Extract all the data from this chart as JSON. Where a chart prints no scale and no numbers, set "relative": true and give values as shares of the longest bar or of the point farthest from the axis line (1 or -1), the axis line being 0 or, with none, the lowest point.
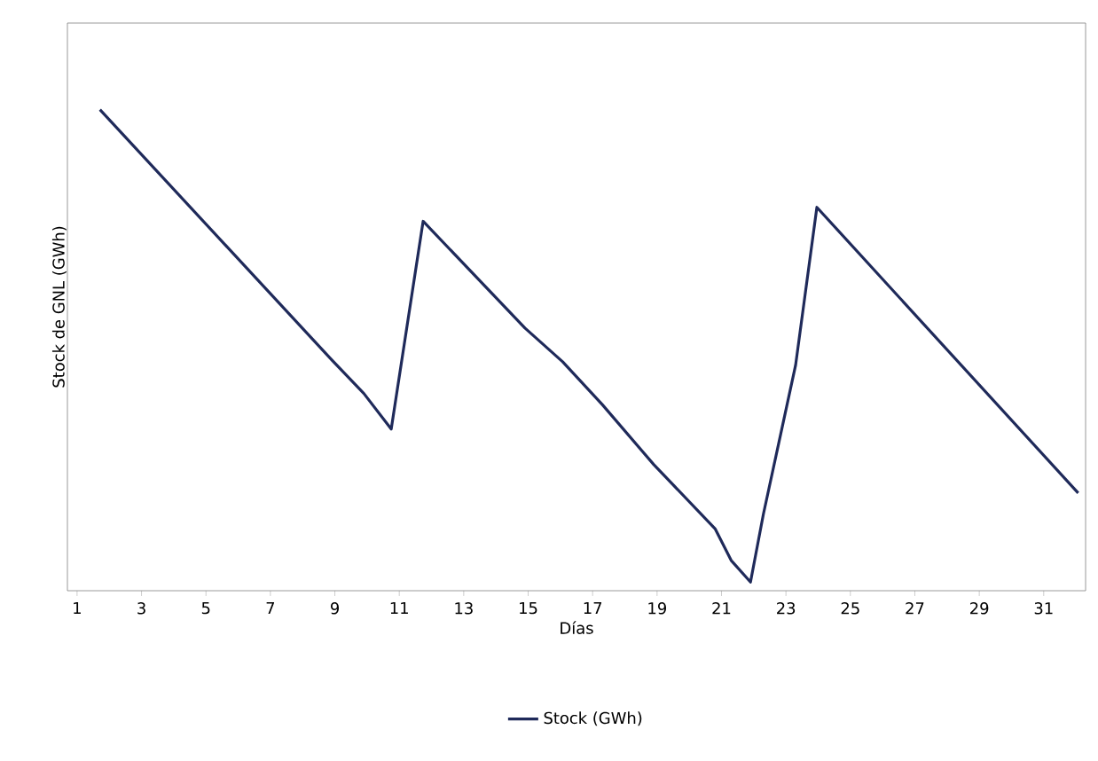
{
  "chart_data": {
    "type": "line",
    "relative": true,
    "xlabel": "Días",
    "ylabel": "Stock de GNL  (GWh)",
    "xlim": [
      0.7,
      32.3
    ],
    "xticks": [
      1,
      3,
      5,
      7,
      9,
      11,
      13,
      15,
      17,
      19,
      21,
      23,
      25,
      27,
      29,
      31
    ],
    "legend": "bottom",
    "grid": false,
    "marker": "none",
    "line_style": "solid",
    "series": [
      {
        "name": "Stock (GWh)",
        "color": "#1f2a5a",
        "x": [
          1.71,
          8.9,
          9.9,
          10.75,
          11.74,
          14.9,
          16.07,
          17.3,
          18.9,
          20.8,
          21.3,
          21.9,
          22.3,
          23.3,
          23.96,
          32.07
        ],
        "values": [
          1,
          0.48,
          0.41,
          0.336,
          0.768,
          0.546,
          0.476,
          0.387,
          0.262,
          0.129,
          0.063,
          0.018,
          0.159,
          0.469,
          0.797,
          0.203
        ]
      }
    ]
  }
}
